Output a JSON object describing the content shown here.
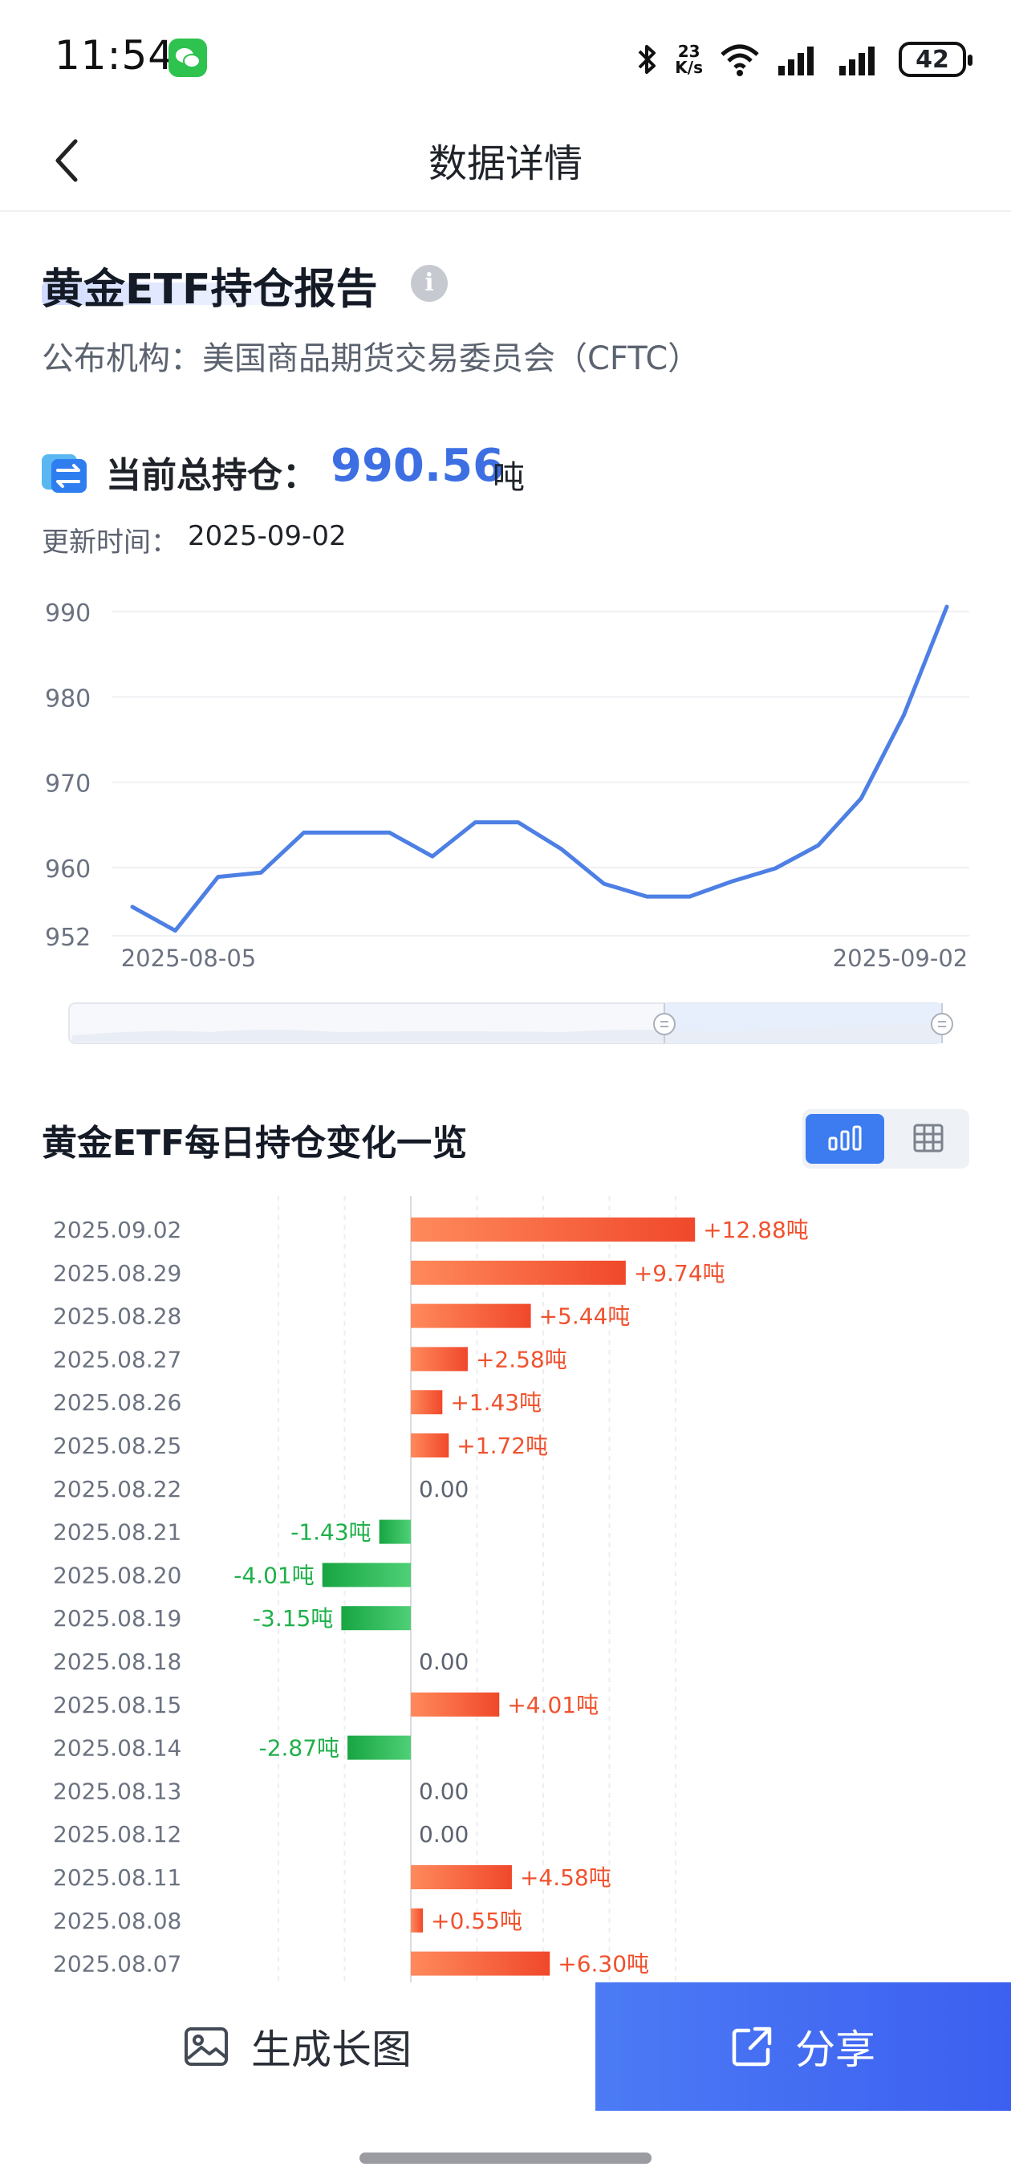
{
  "status_bar": {
    "time": "11:54",
    "net_speed_value": "23",
    "net_speed_unit": "K/s",
    "battery": "42"
  },
  "nav": {
    "title": "数据详情"
  },
  "report": {
    "title": "黄金ETF持仓报告",
    "publisher": "公布机构：美国商品期货交易委员会（CFTC）",
    "holding_label": "当前总持仓：",
    "holding_value": "990.56",
    "holding_unit": "吨",
    "update_label": "更新时间：",
    "update_value": "2025-09-02"
  },
  "chart_data": [
    {
      "type": "line",
      "y_ticks": [
        "990",
        "980",
        "970",
        "960",
        "952"
      ],
      "ylim": [
        952,
        990
      ],
      "x_range_labels": [
        "2025-08-05",
        "2025-09-02"
      ],
      "values": [
        955.4,
        952.6,
        958.9,
        959.4,
        964.1,
        964.1,
        964.1,
        961.3,
        965.3,
        965.3,
        962.2,
        958.1,
        956.6,
        956.6,
        958.4,
        959.9,
        962.6,
        968.1,
        977.9,
        990.56
      ],
      "line_color": "#4d7fe4"
    },
    {
      "type": "bar",
      "categories": [
        "2025.09.02",
        "2025.08.29",
        "2025.08.28",
        "2025.08.27",
        "2025.08.26",
        "2025.08.25",
        "2025.08.22",
        "2025.08.21",
        "2025.08.20",
        "2025.08.19",
        "2025.08.18",
        "2025.08.15",
        "2025.08.14",
        "2025.08.13",
        "2025.08.12",
        "2025.08.11",
        "2025.08.08",
        "2025.08.07"
      ],
      "values": [
        12.88,
        9.74,
        5.44,
        2.58,
        1.43,
        1.72,
        0,
        -1.43,
        -4.01,
        -3.15,
        0,
        4.01,
        -2.87,
        0,
        0,
        4.58,
        0.55,
        6.3
      ],
      "labels": [
        "+12.88吨",
        "+9.74吨",
        "+5.44吨",
        "+2.58吨",
        "+1.43吨",
        "+1.72吨",
        "0.00",
        "-1.43吨",
        "-4.01吨",
        "-3.15吨",
        "0.00",
        "+4.01吨",
        "-2.87吨",
        "0.00",
        "0.00",
        "+4.58吨",
        "+0.55吨",
        "+6.30吨"
      ],
      "positive_color": "#f0522e",
      "negative_color": "#1fb04a",
      "zero_color": "#5c6370"
    }
  ],
  "daily": {
    "title": "黄金ETF每日持仓变化一览",
    "toggle_active": "bar-chart",
    "toggle_options": [
      "bar-chart-icon",
      "table-icon"
    ]
  },
  "bottom": {
    "generate_label": "生成长图",
    "share_label": "分享"
  }
}
